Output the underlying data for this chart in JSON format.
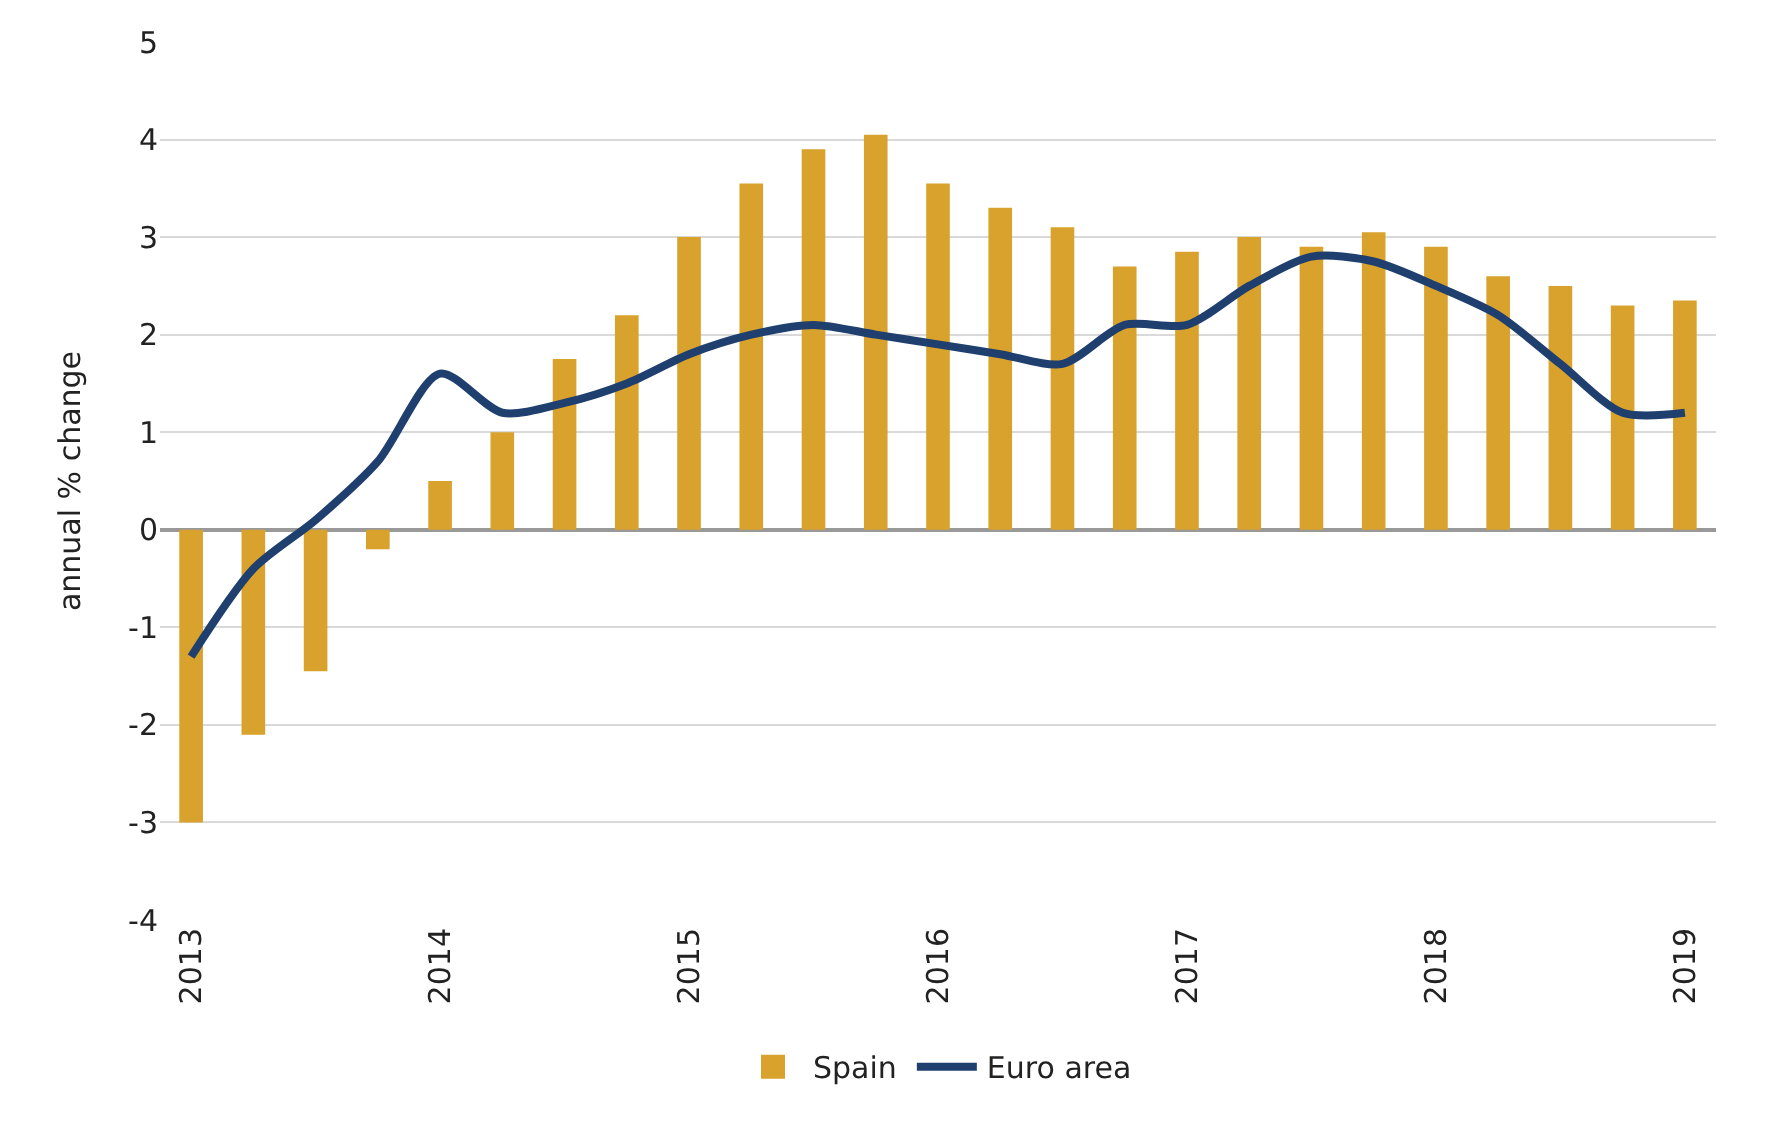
{
  "chart_data": {
    "type": "bar",
    "ylabel": "annual % change",
    "categories": [
      "2013",
      null,
      null,
      null,
      "2014",
      null,
      null,
      null,
      "2015",
      null,
      null,
      null,
      "2016",
      null,
      null,
      null,
      "2017",
      null,
      null,
      null,
      "2018",
      null,
      null,
      null,
      "2019"
    ],
    "series": [
      {
        "name": "Spain",
        "color": "#d9a22d",
        "values": [
          -3.0,
          -2.1,
          -1.45,
          -0.2,
          0.5,
          1.0,
          1.75,
          2.2,
          3.0,
          3.55,
          3.9,
          4.05,
          3.55,
          3.3,
          3.1,
          2.7,
          2.85,
          3.0,
          2.9,
          3.05,
          2.9,
          2.6,
          2.5,
          2.3,
          2.35
        ]
      },
      {
        "name": "Euro area",
        "type": "line",
        "color": "#1f3f6e",
        "values": [
          -1.3,
          -0.4,
          0.1,
          0.7,
          1.6,
          1.2,
          1.3,
          1.5,
          1.8,
          2.0,
          2.1,
          2.0,
          1.9,
          1.8,
          1.7,
          2.1,
          2.1,
          2.5,
          2.8,
          2.75,
          2.5,
          2.2,
          1.7,
          1.2,
          1.2
        ]
      }
    ],
    "ylim": [
      -4,
      5
    ],
    "yticks": [
      -4,
      -3,
      -2,
      -1,
      0,
      1,
      2,
      3,
      4,
      5
    ],
    "grid": "y",
    "legend": "bottom",
    "marker": "none",
    "line_style": "solid"
  }
}
